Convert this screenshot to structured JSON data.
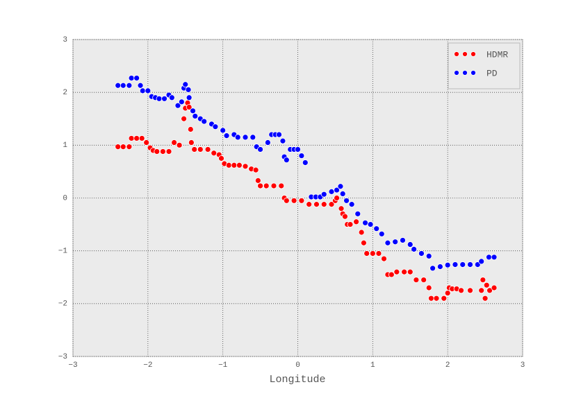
{
  "chart_data": {
    "type": "scatter",
    "x_label": "Longitude",
    "xlim": [
      -3,
      3
    ],
    "ylim": [
      -3,
      3
    ],
    "xticks": [
      {
        "value": -3,
        "label": "−3"
      },
      {
        "value": -2,
        "label": "−2"
      },
      {
        "value": -1,
        "label": "−1"
      },
      0,
      1,
      2,
      3
    ],
    "yticks": [
      {
        "value": -3,
        "label": "−3"
      },
      {
        "value": -2,
        "label": "−2"
      },
      {
        "value": -1,
        "label": "−1"
      },
      0,
      1,
      2,
      3
    ],
    "grid": true,
    "legend": "upper right",
    "series": [
      {
        "name": "HDMR",
        "color": "#ff0000",
        "x": [
          -2.4,
          -2.33,
          -2.25,
          -2.22,
          -2.15,
          -2.08,
          -2.02,
          -1.97,
          -1.93,
          -1.88,
          -1.8,
          -1.72,
          -1.65,
          -1.58,
          -1.52,
          -1.5,
          -1.47,
          -1.45,
          -1.43,
          -1.42,
          -1.38,
          -1.3,
          -1.2,
          -1.12,
          -1.05,
          -1.02,
          -0.98,
          -0.92,
          -0.85,
          -0.78,
          -0.7,
          -0.62,
          -0.56,
          -0.53,
          -0.5,
          -0.42,
          -0.32,
          -0.22,
          -0.18,
          -0.15,
          -0.05,
          0.05,
          0.15,
          0.25,
          0.35,
          0.45,
          0.5,
          0.52,
          0.58,
          0.6,
          0.63,
          0.66,
          0.7,
          0.78,
          0.85,
          0.88,
          0.92,
          1.0,
          1.08,
          1.15,
          1.2,
          1.25,
          1.32,
          1.42,
          1.5,
          1.58,
          1.68,
          1.75,
          1.78,
          1.85,
          1.95,
          2.0,
          2.02,
          2.06,
          2.12,
          2.18,
          2.3,
          2.45,
          2.47,
          2.5,
          2.52,
          2.56,
          2.62
        ],
        "y": [
          0.97,
          0.97,
          0.97,
          1.13,
          1.13,
          1.13,
          1.05,
          0.95,
          0.9,
          0.88,
          0.88,
          0.88,
          1.05,
          1.0,
          1.5,
          1.7,
          1.8,
          1.72,
          1.3,
          1.05,
          0.92,
          0.92,
          0.92,
          0.85,
          0.82,
          0.75,
          0.65,
          0.62,
          0.62,
          0.62,
          0.6,
          0.55,
          0.53,
          0.33,
          0.23,
          0.23,
          0.23,
          0.23,
          0.0,
          -0.05,
          -0.05,
          -0.05,
          -0.12,
          -0.12,
          -0.12,
          -0.12,
          -0.05,
          0.0,
          -0.2,
          -0.3,
          -0.35,
          -0.5,
          -0.5,
          -0.45,
          -0.65,
          -0.85,
          -1.05,
          -1.05,
          -1.05,
          -1.15,
          -1.45,
          -1.45,
          -1.4,
          -1.4,
          -1.4,
          -1.55,
          -1.55,
          -1.7,
          -1.9,
          -1.9,
          -1.9,
          -1.8,
          -1.7,
          -1.72,
          -1.72,
          -1.75,
          -1.75,
          -1.75,
          -1.55,
          -1.9,
          -1.65,
          -1.75,
          -1.7
        ]
      },
      {
        "name": "PD",
        "color": "#0000ff",
        "x": [
          -2.4,
          -2.33,
          -2.25,
          -2.22,
          -2.15,
          -2.1,
          -2.07,
          -2.0,
          -1.95,
          -1.9,
          -1.85,
          -1.78,
          -1.72,
          -1.68,
          -1.6,
          -1.55,
          -1.52,
          -1.5,
          -1.46,
          -1.45,
          -1.4,
          -1.37,
          -1.3,
          -1.25,
          -1.15,
          -1.1,
          -1.0,
          -0.95,
          -0.85,
          -0.8,
          -0.7,
          -0.6,
          -0.55,
          -0.5,
          -0.4,
          -0.35,
          -0.3,
          -0.25,
          -0.2,
          -0.18,
          -0.15,
          -0.1,
          -0.05,
          0.0,
          0.05,
          0.1,
          0.18,
          0.24,
          0.3,
          0.35,
          0.45,
          0.52,
          0.57,
          0.6,
          0.65,
          0.72,
          0.8,
          0.9,
          0.97,
          1.05,
          1.12,
          1.2,
          1.3,
          1.4,
          1.5,
          1.55,
          1.65,
          1.75,
          1.8,
          1.9,
          2.0,
          2.1,
          2.2,
          2.3,
          2.4,
          2.45,
          2.55,
          2.62
        ],
        "y": [
          2.13,
          2.13,
          2.13,
          2.27,
          2.27,
          2.13,
          2.03,
          2.03,
          1.92,
          1.9,
          1.88,
          1.88,
          1.95,
          1.9,
          1.75,
          1.82,
          2.08,
          2.15,
          2.05,
          1.9,
          1.65,
          1.55,
          1.5,
          1.45,
          1.4,
          1.35,
          1.28,
          1.18,
          1.2,
          1.15,
          1.15,
          1.15,
          0.97,
          0.92,
          1.05,
          1.2,
          1.2,
          1.2,
          1.08,
          0.78,
          0.72,
          0.92,
          0.92,
          0.92,
          0.8,
          0.67,
          0.02,
          0.02,
          0.02,
          0.07,
          0.12,
          0.15,
          0.22,
          0.08,
          -0.05,
          -0.12,
          -0.3,
          -0.47,
          -0.5,
          -0.58,
          -0.68,
          -0.85,
          -0.83,
          -0.8,
          -0.88,
          -0.97,
          -1.05,
          -1.1,
          -1.33,
          -1.3,
          -1.27,
          -1.26,
          -1.26,
          -1.26,
          -1.26,
          -1.2,
          -1.12,
          -1.12
        ]
      }
    ]
  }
}
